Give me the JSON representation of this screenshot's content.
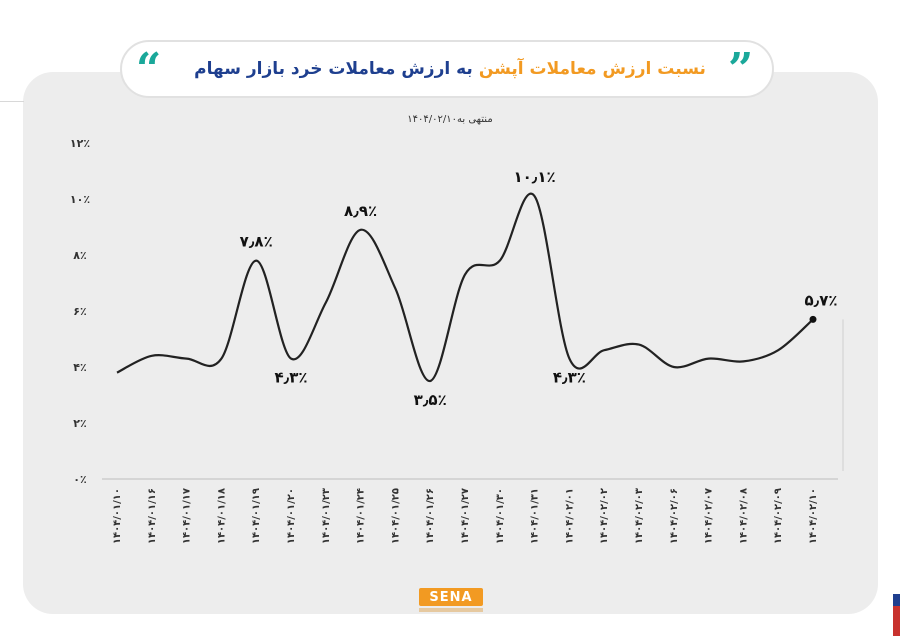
{
  "title": {
    "part1": "نسبت ارزش معاملات آپشن",
    "part2": "به ارزش معاملات خرد بازار سهام",
    "part1_color": "#f29a22",
    "part2_color": "#1e3f8f"
  },
  "subtitle": "منتهی به۱۴۰۴/۰۲/۱۰",
  "brand": {
    "logo": "SENA"
  },
  "colors": {
    "accent": "#1aa89a",
    "line": "#222222",
    "card": "#ededed"
  },
  "chart_data": {
    "type": "line",
    "title": "نسبت ارزش معاملات آپشن به ارزش معاملات خرد بازار سهام",
    "subtitle": "منتهی به۱۴۰۴/۰۲/۱۰",
    "xlabel": "",
    "ylabel": "",
    "ylim": [
      0,
      12
    ],
    "yticks": [
      "۰٪",
      "۲٪",
      "۴٪",
      "۶٪",
      "۸٪",
      "۱۰٪",
      "۱۲٪"
    ],
    "grid": false,
    "legend": "none",
    "categories": [
      "۱۴۰۴/۰۱/۱۰",
      "۱۴۰۴/۰۱/۱۶",
      "۱۴۰۴/۰۱/۱۷",
      "۱۴۰۴/۰۱/۱۸",
      "۱۴۰۴/۰۱/۱۹",
      "۱۴۰۴/۰۱/۲۰",
      "۱۴۰۴/۰۱/۲۳",
      "۱۴۰۴/۰۱/۲۴",
      "۱۴۰۴/۰۱/۲۵",
      "۱۴۰۴/۰۱/۲۶",
      "۱۴۰۴/۰۱/۲۷",
      "۱۴۰۴/۰۱/۳۰",
      "۱۴۰۴/۰۱/۳۱",
      "۱۴۰۴/۰۲/۰۱",
      "۱۴۰۴/۰۲/۰۲",
      "۱۴۰۴/۰۲/۰۳",
      "۱۴۰۴/۰۲/۰۶",
      "۱۴۰۴/۰۲/۰۷",
      "۱۴۰۴/۰۲/۰۸",
      "۱۴۰۴/۰۲/۰۹",
      "۱۴۰۴/۰۲/۱۰"
    ],
    "series": [
      {
        "values": [
          3.8,
          4.4,
          4.3,
          4.3,
          7.8,
          4.3,
          6.3,
          8.9,
          6.8,
          3.5,
          7.3,
          7.8,
          10.1,
          4.3,
          4.6,
          4.8,
          4.0,
          4.3,
          4.2,
          4.6,
          5.7
        ]
      }
    ],
    "data_labels": [
      {
        "index": 4,
        "text": "۷٫۸٪",
        "pos": "above"
      },
      {
        "index": 5,
        "text": "۴٫۳٪",
        "pos": "below"
      },
      {
        "index": 7,
        "text": "۸٫۹٪",
        "pos": "above"
      },
      {
        "index": 9,
        "text": "۳٫۵٪",
        "pos": "below"
      },
      {
        "index": 12,
        "text": "۱۰٫۱٪",
        "pos": "above"
      },
      {
        "index": 13,
        "text": "۴٫۳٪",
        "pos": "below"
      },
      {
        "index": 20,
        "text": "۵٫۷٪",
        "pos": "above"
      }
    ]
  }
}
